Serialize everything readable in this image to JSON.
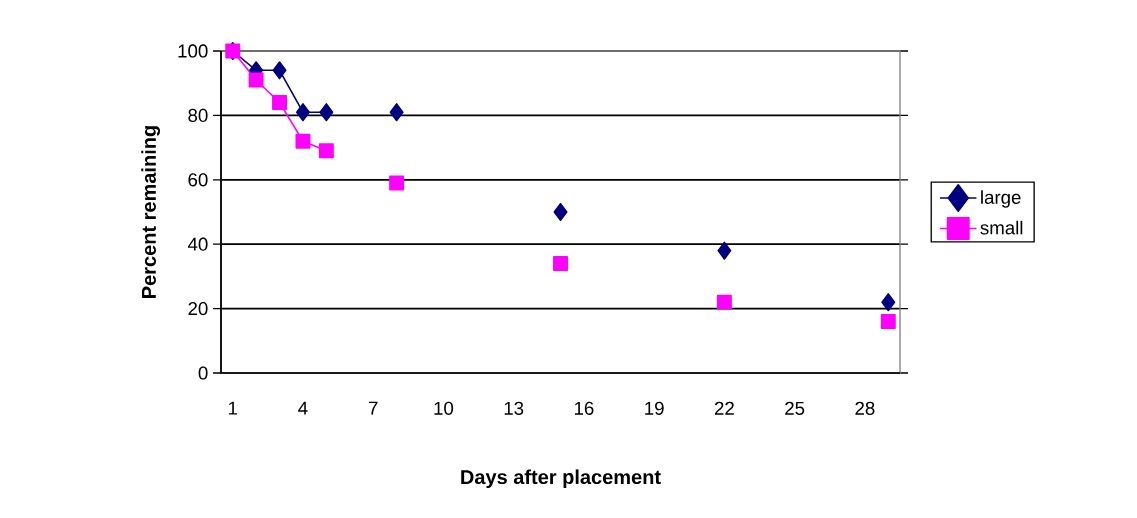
{
  "chart_data": {
    "type": "line",
    "xlabel": "Days after placement",
    "ylabel": "Percent remaining",
    "categories": [
      "1",
      null,
      null,
      "4",
      null,
      null,
      "7",
      null,
      null,
      "10",
      null,
      null,
      "13",
      null,
      null,
      "16",
      null,
      null,
      "19",
      null,
      null,
      "22",
      null,
      null,
      "25",
      null,
      null,
      "28",
      null
    ],
    "series": [
      {
        "name": "large",
        "color": "#000080",
        "marker": "diamond",
        "values": [
          100,
          94,
          94,
          81,
          81,
          null,
          null,
          81,
          null,
          null,
          null,
          null,
          null,
          null,
          50,
          null,
          null,
          null,
          null,
          null,
          null,
          38,
          null,
          null,
          null,
          null,
          null,
          null,
          22
        ]
      },
      {
        "name": "small",
        "color": "#ff00ff",
        "marker": "square",
        "values": [
          100,
          91,
          84,
          72,
          69,
          null,
          null,
          59,
          null,
          null,
          null,
          null,
          null,
          null,
          34,
          null,
          null,
          null,
          null,
          null,
          null,
          22,
          null,
          null,
          null,
          null,
          null,
          null,
          16
        ]
      }
    ],
    "ylim": [
      0,
      100
    ],
    "yticks": [
      0,
      20,
      40,
      60,
      80,
      100
    ],
    "grid": "y",
    "legend": "right",
    "line_style": "solid"
  }
}
